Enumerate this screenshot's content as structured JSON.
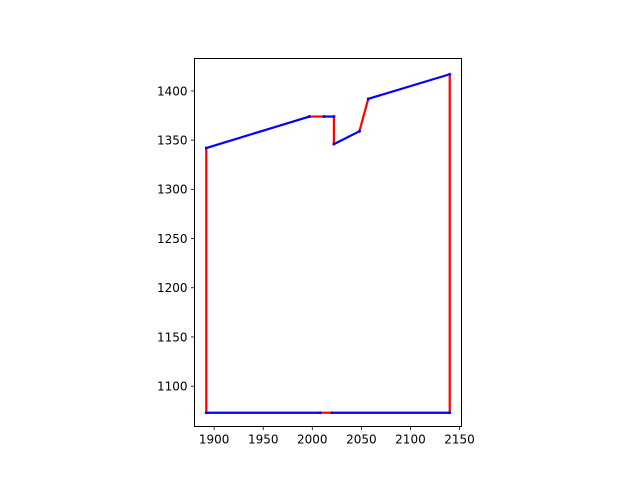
{
  "chart_data": {
    "type": "line",
    "title": "",
    "xlabel": "",
    "ylabel": "",
    "xlim": [
      1880,
      2152
    ],
    "ylim": [
      1059,
      1433
    ],
    "xticks": [
      1900,
      1950,
      2000,
      2050,
      2100,
      2150
    ],
    "yticks": [
      1100,
      1150,
      1200,
      1250,
      1300,
      1350,
      1400
    ],
    "xtick_labels": [
      "1900",
      "1950",
      "2000",
      "2050",
      "2100",
      "2150"
    ],
    "ytick_labels": [
      "1100",
      "1150",
      "1200",
      "1250",
      "1300",
      "1350",
      "1400"
    ],
    "grid": false,
    "legend": "none",
    "colors": {
      "blue": "#0000ff",
      "red": "#ff0000"
    },
    "segments": [
      {
        "color": "blue",
        "x": [
          1892,
          1997
        ],
        "y": [
          1342,
          1374
        ]
      },
      {
        "color": "red",
        "x": [
          1997,
          2012
        ],
        "y": [
          1374,
          1374
        ]
      },
      {
        "color": "blue",
        "x": [
          2012,
          2022
        ],
        "y": [
          1374,
          1374
        ]
      },
      {
        "color": "red",
        "x": [
          2022,
          2022
        ],
        "y": [
          1374,
          1346
        ]
      },
      {
        "color": "blue",
        "x": [
          2022,
          2048
        ],
        "y": [
          1346,
          1359
        ]
      },
      {
        "color": "red",
        "x": [
          2048,
          2057
        ],
        "y": [
          1359,
          1392
        ]
      },
      {
        "color": "blue",
        "x": [
          2057,
          2140
        ],
        "y": [
          1392,
          1417
        ]
      },
      {
        "color": "red",
        "x": [
          2140,
          2140
        ],
        "y": [
          1417,
          1073
        ]
      },
      {
        "color": "blue",
        "x": [
          2140,
          2020
        ],
        "y": [
          1073,
          1073
        ]
      },
      {
        "color": "red",
        "x": [
          2020,
          2008
        ],
        "y": [
          1073,
          1073
        ]
      },
      {
        "color": "blue",
        "x": [
          2008,
          1892
        ],
        "y": [
          1073,
          1073
        ]
      },
      {
        "color": "red",
        "x": [
          1892,
          1892
        ],
        "y": [
          1073,
          1342
        ]
      }
    ]
  }
}
